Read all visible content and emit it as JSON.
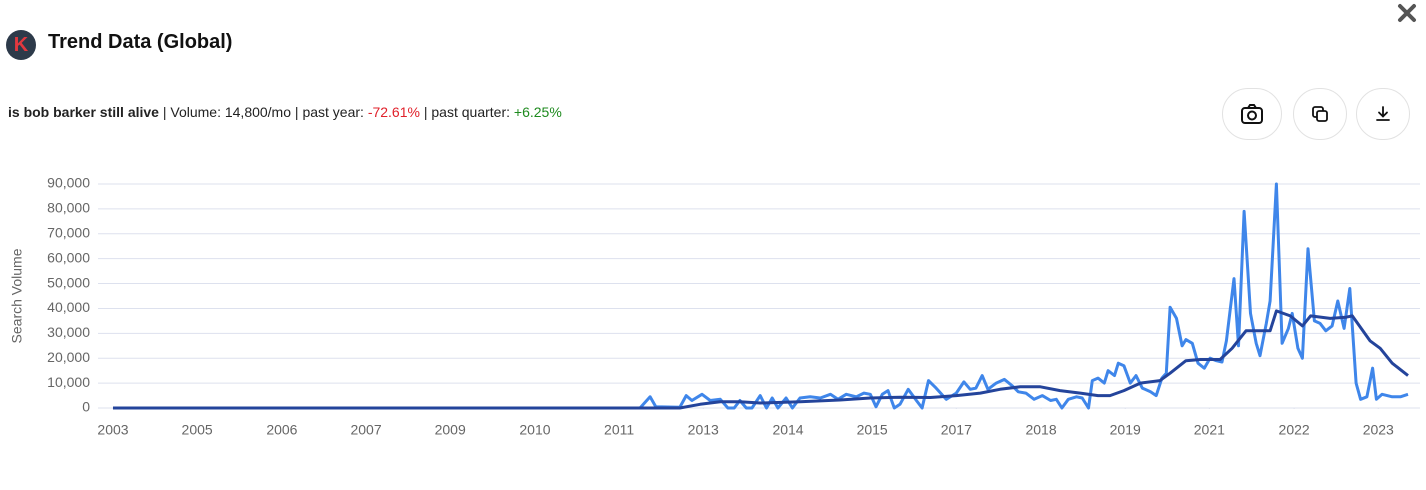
{
  "header": {
    "title": "Trend Data (Global)",
    "logo": "K"
  },
  "info": {
    "keyword": "is bob barker still alive",
    "separator": "|",
    "volume": "Volume: 14,800/mo",
    "past_year_label": "past year:",
    "past_year": "-72.61%",
    "past_quarter_label": "past quarter:",
    "past_quarter": "+6.25%"
  },
  "chart_data": {
    "type": "line",
    "y_label": "Search Volume",
    "grid": true,
    "xlim": [
      2003,
      2023.47
    ],
    "ylim": [
      0,
      90000
    ],
    "yticks": [
      {
        "value": 0,
        "label": "0"
      },
      {
        "value": 10000,
        "label": "10,000"
      },
      {
        "value": 20000,
        "label": "20,000"
      },
      {
        "value": 30000,
        "label": "30,000"
      },
      {
        "value": 40000,
        "label": "40,000"
      },
      {
        "value": 50000,
        "label": "50,000"
      },
      {
        "value": 60000,
        "label": "60,000"
      },
      {
        "value": 70000,
        "label": "70,000"
      },
      {
        "value": 80000,
        "label": "80,000"
      },
      {
        "value": 90000,
        "label": "90,000"
      }
    ],
    "xticks": [
      {
        "value": 2003,
        "label": "2003"
      },
      {
        "value": 2004.33,
        "label": "2005"
      },
      {
        "value": 2005.67,
        "label": "2006"
      },
      {
        "value": 2007,
        "label": "2007"
      },
      {
        "value": 2008.33,
        "label": "2009"
      },
      {
        "value": 2009.67,
        "label": "2010"
      },
      {
        "value": 2011,
        "label": "2011"
      },
      {
        "value": 2012.33,
        "label": "2013"
      },
      {
        "value": 2013.67,
        "label": "2014"
      },
      {
        "value": 2015,
        "label": "2015"
      },
      {
        "value": 2016.33,
        "label": "2017"
      },
      {
        "value": 2017.67,
        "label": "2018"
      },
      {
        "value": 2019,
        "label": "2019"
      },
      {
        "value": 2020.33,
        "label": "2021"
      },
      {
        "value": 2021.67,
        "label": "2022"
      },
      {
        "value": 2023,
        "label": "2023"
      }
    ],
    "series": [
      {
        "color": "#3f86ea",
        "x": [
          2003,
          2011.33,
          2011.49,
          2011.58,
          2011.96,
          2012.06,
          2012.15,
          2012.31,
          2012.44,
          2012.6,
          2012.72,
          2012.82,
          2012.91,
          2013.01,
          2013.1,
          2013.23,
          2013.33,
          2013.42,
          2013.51,
          2013.64,
          2013.74,
          2013.86,
          2014.02,
          2014.18,
          2014.34,
          2014.46,
          2014.59,
          2014.75,
          2014.87,
          2014.97,
          2015.06,
          2015.16,
          2015.25,
          2015.35,
          2015.44,
          2015.57,
          2015.7,
          2015.79,
          2015.89,
          2016.01,
          2016.17,
          2016.33,
          2016.45,
          2016.55,
          2016.64,
          2016.74,
          2016.83,
          2016.96,
          2017.09,
          2017.21,
          2017.31,
          2017.43,
          2017.56,
          2017.69,
          2017.82,
          2017.91,
          2018.0,
          2018.1,
          2018.23,
          2018.32,
          2018.42,
          2018.48,
          2018.57,
          2018.67,
          2018.73,
          2018.83,
          2018.89,
          2018.98,
          2019.08,
          2019.17,
          2019.27,
          2019.4,
          2019.49,
          2019.58,
          2019.65,
          2019.71,
          2019.81,
          2019.9,
          2019.96,
          2020.06,
          2020.15,
          2020.25,
          2020.34,
          2020.44,
          2020.53,
          2020.6,
          2020.72,
          2020.79,
          2020.88,
          2020.98,
          2021.07,
          2021.13,
          2021.23,
          2021.29,
          2021.39,
          2021.48,
          2021.58,
          2021.64,
          2021.73,
          2021.8,
          2021.89,
          2021.99,
          2022.08,
          2022.17,
          2022.27,
          2022.36,
          2022.46,
          2022.55,
          2022.65,
          2022.72,
          2022.82,
          2022.91,
          2022.97,
          2023.06,
          2023.22,
          2023.35,
          2023.47
        ],
        "values": [
          0,
          0,
          4500,
          500,
          300,
          5000,
          3000,
          5500,
          3000,
          3500,
          0,
          0,
          3000,
          0,
          0,
          5000,
          0,
          4000,
          0,
          4000,
          0,
          4000,
          4500,
          4000,
          5500,
          3500,
          5500,
          4500,
          6000,
          5500,
          500,
          5500,
          7000,
          0,
          1500,
          7500,
          3000,
          0,
          11000,
          8000,
          3500,
          6000,
          10500,
          7500,
          8000,
          13000,
          7500,
          10000,
          11500,
          9000,
          6500,
          6000,
          3500,
          5000,
          3000,
          3500,
          0,
          3500,
          4500,
          4000,
          0,
          11000,
          12000,
          10000,
          15000,
          13000,
          18000,
          17000,
          10000,
          13000,
          8000,
          6500,
          5000,
          12000,
          14000,
          40500,
          36000,
          25000,
          27500,
          26000,
          18000,
          16000,
          20000,
          19000,
          18500,
          27000,
          52000,
          25000,
          79000,
          38000,
          26000,
          21000,
          34000,
          43000,
          90000,
          26000,
          32000,
          38000,
          24000,
          20000,
          64000,
          35000,
          34000,
          31000,
          33000,
          43000,
          32000,
          48000,
          10000,
          3500,
          4500,
          16000,
          3500,
          5500,
          4500,
          4500,
          5500
        ]
      },
      {
        "color": "#24449b",
        "x": [
          2003,
          2011.33,
          2011.96,
          2012.28,
          2012.6,
          2012.91,
          2013.23,
          2013.86,
          2014.49,
          2014.97,
          2015.44,
          2015.92,
          2016.33,
          2016.71,
          2017.02,
          2017.34,
          2017.66,
          2017.97,
          2018.29,
          2018.57,
          2018.76,
          2018.98,
          2019.24,
          2019.55,
          2019.71,
          2019.96,
          2020.19,
          2020.5,
          2020.69,
          2020.91,
          2021.13,
          2021.29,
          2021.39,
          2021.61,
          2021.8,
          2021.93,
          2022.24,
          2022.49,
          2022.59,
          2022.87,
          2023.03,
          2023.22,
          2023.47
        ],
        "values": [
          0,
          0,
          0,
          1500,
          2500,
          2500,
          2000,
          2500,
          3200,
          4000,
          4300,
          4200,
          5000,
          6000,
          7500,
          8500,
          8500,
          7000,
          6000,
          5000,
          5000,
          7000,
          10000,
          11000,
          14000,
          19000,
          19500,
          19500,
          24000,
          31000,
          31000,
          31000,
          39000,
          37000,
          33000,
          37000,
          36000,
          36500,
          37000,
          27000,
          24000,
          18000,
          13000
        ]
      }
    ]
  }
}
